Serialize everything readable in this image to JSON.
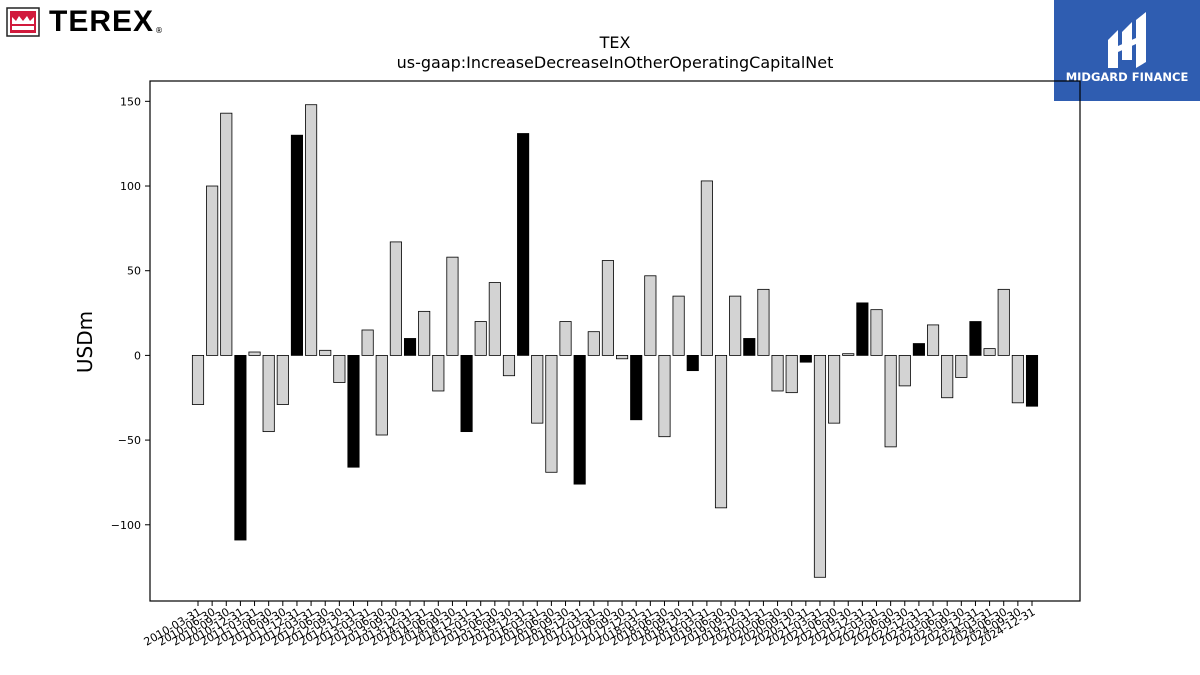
{
  "logos": {
    "left_brand": "TEREX",
    "left_registered": "®",
    "right_brand": "MIDGARD FINANCE"
  },
  "colors": {
    "bar_light": "#d3d3d3",
    "bar_dark": "#000000",
    "edge": "#000000",
    "midgard_bg": "#2f5db1"
  },
  "chart_data": {
    "type": "bar",
    "title": "TEX",
    "subtitle": "us-gaap:IncreaseDecreaseInOtherOperatingCapitalNet",
    "xlabel": "",
    "ylabel": "USDm",
    "ylim": [
      -145,
      162
    ],
    "yticks": [
      150,
      100,
      50,
      0,
      -50,
      -100
    ],
    "ytick_labels": [
      "150",
      "100",
      "50",
      "0",
      "−50",
      "−100"
    ],
    "grid": false,
    "legend": "none",
    "categories": [
      "2010-03-31",
      "2010-06-30",
      "2010-09-30",
      "2010-12-31",
      "2011-03-31",
      "2011-06-30",
      "2011-09-30",
      "2011-12-31",
      "2012-03-31",
      "2012-06-30",
      "2012-09-30",
      "2012-12-31",
      "2013-03-31",
      "2013-06-30",
      "2013-09-30",
      "2013-12-31",
      "2014-03-31",
      "2014-06-30",
      "2014-09-30",
      "2014-12-31",
      "2015-03-31",
      "2015-06-30",
      "2015-09-30",
      "2015-12-31",
      "2016-03-31",
      "2016-06-30",
      "2016-09-30",
      "2016-12-31",
      "2017-03-31",
      "2017-06-30",
      "2017-09-30",
      "2017-12-31",
      "2018-03-31",
      "2018-06-30",
      "2018-09-30",
      "2018-12-31",
      "2019-03-31",
      "2019-06-30",
      "2019-09-30",
      "2019-12-31",
      "2020-03-31",
      "2020-06-30",
      "2020-09-30",
      "2020-12-31",
      "2021-03-31",
      "2021-06-30",
      "2021-09-30",
      "2021-12-31",
      "2022-03-31",
      "2022-06-30",
      "2022-09-30",
      "2022-12-31",
      "2023-03-31",
      "2023-06-30",
      "2023-09-30",
      "2023-12-31",
      "2024-03-31",
      "2024-06-30",
      "2024-09-30",
      "2024-12-31"
    ],
    "values": [
      -29,
      100,
      143,
      -109,
      2,
      -45,
      -29,
      130,
      148,
      3,
      -16,
      -66,
      15,
      -47,
      67,
      10,
      26,
      -21,
      58,
      -45,
      20,
      43,
      -12,
      131,
      -40,
      -69,
      20,
      -76,
      14,
      56,
      -2,
      -38,
      47,
      -48,
      35,
      -9,
      103,
      -90,
      35,
      10,
      39,
      -21,
      -22,
      -4,
      -131,
      -40,
      1,
      31,
      27,
      -54,
      -18,
      7,
      18,
      -25,
      -13,
      20,
      4,
      39,
      -28,
      -30
    ],
    "dark_bars": [
      3,
      7,
      11,
      15,
      19,
      23,
      27,
      31,
      35,
      39,
      43,
      47,
      51,
      55,
      59
    ]
  }
}
